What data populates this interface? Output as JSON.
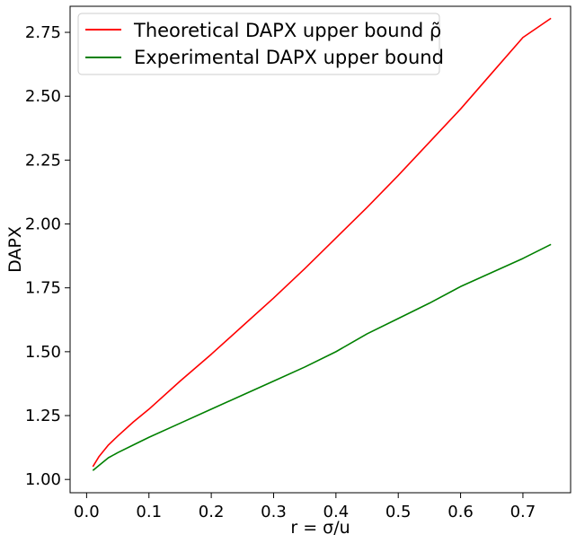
{
  "chart_data": {
    "type": "line",
    "title": "",
    "xlabel": "r = σ/u",
    "ylabel": "DAPX",
    "xlim": [
      -0.0265,
      0.7765
    ],
    "ylim": [
      0.948,
      2.852
    ],
    "x_ticks": [
      0.0,
      0.1,
      0.2,
      0.3,
      0.4,
      0.5,
      0.6,
      0.7
    ],
    "x_tick_labels": [
      "0.0",
      "0.1",
      "0.2",
      "0.3",
      "0.4",
      "0.5",
      "0.6",
      "0.7"
    ],
    "y_ticks": [
      1.0,
      1.25,
      1.5,
      1.75,
      2.0,
      2.25,
      2.5,
      2.75
    ],
    "y_tick_labels": [
      "1.00",
      "1.25",
      "1.50",
      "1.75",
      "2.00",
      "2.25",
      "2.50",
      "2.75"
    ],
    "grid": false,
    "legend_position": "top-left",
    "series": [
      {
        "name": "Theoretical DAPX upper bound ρ̃",
        "color": "#ff0000",
        "x": [
          0.01,
          0.02,
          0.035,
          0.05,
          0.075,
          0.1,
          0.15,
          0.2,
          0.25,
          0.3,
          0.35,
          0.4,
          0.45,
          0.5,
          0.55,
          0.6,
          0.65,
          0.7,
          0.745
        ],
        "y": [
          1.05,
          1.09,
          1.135,
          1.17,
          1.225,
          1.275,
          1.385,
          1.49,
          1.6,
          1.71,
          1.825,
          1.945,
          2.065,
          2.19,
          2.32,
          2.45,
          2.59,
          2.73,
          2.805
        ]
      },
      {
        "name": "Experimental DAPX upper bound",
        "color": "#008000",
        "x": [
          0.01,
          0.02,
          0.035,
          0.05,
          0.075,
          0.1,
          0.15,
          0.2,
          0.25,
          0.3,
          0.35,
          0.4,
          0.45,
          0.5,
          0.55,
          0.6,
          0.65,
          0.7,
          0.745
        ],
        "y": [
          1.035,
          1.055,
          1.085,
          1.105,
          1.135,
          1.165,
          1.22,
          1.275,
          1.33,
          1.385,
          1.44,
          1.5,
          1.57,
          1.63,
          1.69,
          1.755,
          1.81,
          1.865,
          1.92
        ]
      }
    ]
  }
}
